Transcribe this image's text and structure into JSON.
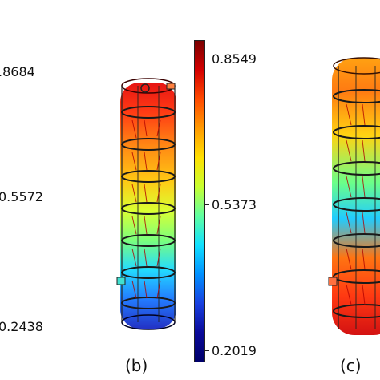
{
  "left_scale": {
    "top": ".8684",
    "mid": "0.5572",
    "bot": "0.2438"
  },
  "colorbar": {
    "max": "0.8549",
    "mid": "0.5373",
    "min": "0.2019"
  },
  "panels": {
    "b": "(b)",
    "c": "(c)"
  }
}
